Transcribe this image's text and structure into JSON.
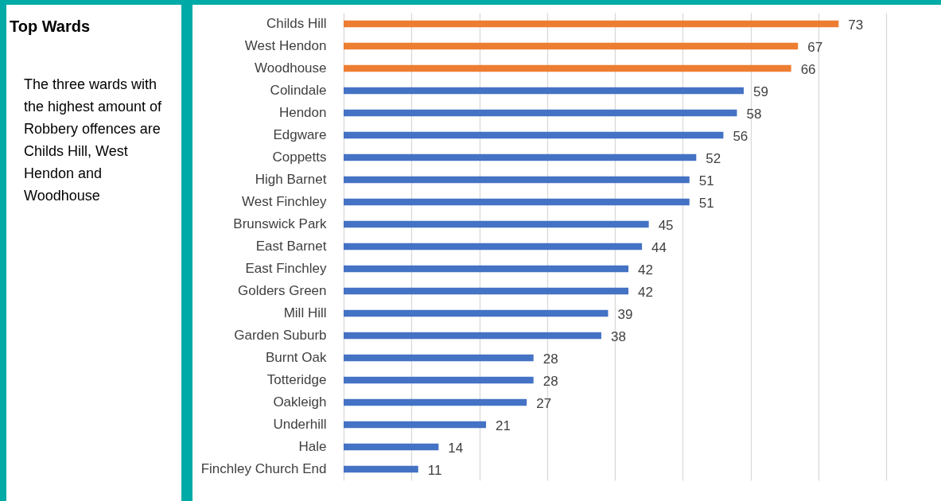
{
  "chart_data": {
    "type": "bar",
    "orientation": "horizontal",
    "title": "Top Wards",
    "annotations": [
      "The three wards with the highest amount of Robbery offences are Childs Hill, West Hendon and Woodhouse"
    ],
    "categories": [
      "Childs Hill",
      "West Hendon",
      "Woodhouse",
      "Colindale",
      "Hendon",
      "Edgware",
      "Coppetts",
      "High Barnet",
      "West Finchley",
      "Brunswick Park",
      "East Barnet",
      "East Finchley",
      "Golders Green",
      "Mill Hill",
      "Garden Suburb",
      "Burnt Oak",
      "Totteridge",
      "Oakleigh",
      "Underhill",
      "Hale",
      "Finchley Church End"
    ],
    "values": [
      73,
      67,
      66,
      59,
      58,
      56,
      52,
      51,
      51,
      45,
      44,
      42,
      42,
      39,
      38,
      28,
      28,
      27,
      21,
      14,
      11
    ],
    "colors": [
      "#ed7d31",
      "#ed7d31",
      "#ed7d31",
      "#4472c4",
      "#4472c4",
      "#4472c4",
      "#4472c4",
      "#4472c4",
      "#4472c4",
      "#4472c4",
      "#4472c4",
      "#4472c4",
      "#4472c4",
      "#4472c4",
      "#4472c4",
      "#4472c4",
      "#4472c4",
      "#4472c4",
      "#4472c4",
      "#4472c4",
      "#4472c4"
    ],
    "xlim": [
      0,
      80
    ],
    "xticks": [
      {
        "value": 0,
        "label": null
      },
      {
        "value": 10,
        "label": null
      },
      {
        "value": 20,
        "label": null
      },
      {
        "value": 30,
        "label": null
      },
      {
        "value": 40,
        "label": null
      },
      {
        "value": 50,
        "label": null
      },
      {
        "value": 60,
        "label": null
      },
      {
        "value": 70,
        "label": null
      },
      {
        "value": 80,
        "label": null
      }
    ],
    "grid": "x",
    "tick_labels": "y",
    "data_labels": true
  }
}
